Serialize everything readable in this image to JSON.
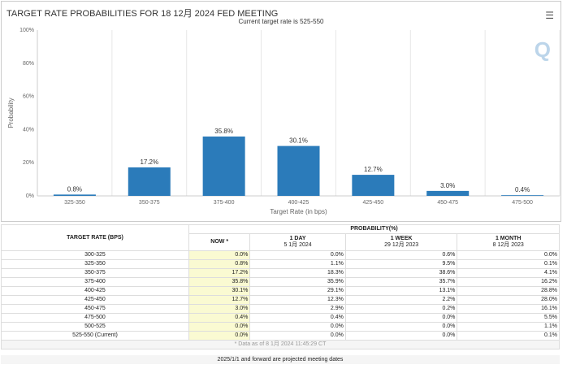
{
  "chart_data": {
    "type": "bar",
    "title": "TARGET RATE PROBABILITIES FOR 18 12月 2024 FED MEETING",
    "subtitle": "Current target rate is 525-550",
    "xlabel": "Target Rate (in bps)",
    "ylabel": "Probability",
    "ylim": [
      0,
      100
    ],
    "yticks": [
      "0%",
      "20%",
      "40%",
      "60%",
      "80%",
      "100%"
    ],
    "categories": [
      "325-350",
      "350-375",
      "375-400",
      "400-425",
      "425-450",
      "450-475",
      "475-500"
    ],
    "values": [
      0.8,
      17.2,
      35.8,
      30.1,
      12.7,
      3.0,
      0.4
    ],
    "data_labels": [
      "0.8%",
      "17.2%",
      "35.8%",
      "30.1%",
      "12.7%",
      "3.0%",
      "0.4%"
    ],
    "bar_color": "#2b7bba",
    "grid": true
  },
  "menu_icon": "hamburger-icon",
  "logo": "Q",
  "table": {
    "col_target": "TARGET RATE (BPS)",
    "col_prob": "PROBABILITY(%)",
    "sub": [
      {
        "label": "NOW *",
        "date": ""
      },
      {
        "label": "1 DAY",
        "date": "5 1月 2024"
      },
      {
        "label": "1 WEEK",
        "date": "29 12月 2023"
      },
      {
        "label": "1 MONTH",
        "date": "8 12月 2023"
      }
    ],
    "rows": [
      [
        "300-325",
        "0.0%",
        "0.0%",
        "0.6%",
        "0.0%"
      ],
      [
        "325-350",
        "0.8%",
        "1.1%",
        "9.5%",
        "0.1%"
      ],
      [
        "350-375",
        "17.2%",
        "18.3%",
        "38.6%",
        "4.1%"
      ],
      [
        "375-400",
        "35.8%",
        "35.9%",
        "35.7%",
        "16.2%"
      ],
      [
        "400-425",
        "30.1%",
        "29.1%",
        "13.1%",
        "28.8%"
      ],
      [
        "425-450",
        "12.7%",
        "12.3%",
        "2.2%",
        "28.0%"
      ],
      [
        "450-475",
        "3.0%",
        "2.9%",
        "0.2%",
        "16.1%"
      ],
      [
        "475-500",
        "0.4%",
        "0.4%",
        "0.0%",
        "5.5%"
      ],
      [
        "500-525",
        "0.0%",
        "0.0%",
        "0.0%",
        "1.1%"
      ],
      [
        "525-550 (Current)",
        "0.0%",
        "0.0%",
        "0.0%",
        "0.1%"
      ]
    ],
    "footer": "* Data as of 8 1月 2024 11:45:29 CT"
  },
  "note": "2025/1/1 and forward are projected meeting dates"
}
